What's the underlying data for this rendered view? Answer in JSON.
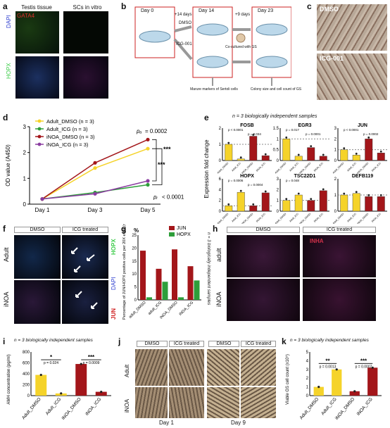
{
  "colors": {
    "adult_yellow": "#f5d32a",
    "inoa_red": "#a3161a",
    "line_green": "#2e9e3a",
    "line_purple": "#8a3ca0",
    "gata4_red": "#e0302a",
    "hopx_green": "#3dcc4a",
    "dapi_blue": "#3040d0",
    "inha_red": "#d0304a",
    "micro_brown": "#9a8670",
    "scale_yellow": "#f0d000"
  },
  "panels": {
    "a": "a",
    "b": "b",
    "c": "c",
    "d": "d",
    "e": "e",
    "f": "f",
    "g": "g",
    "h": "h",
    "i": "i",
    "j": "j",
    "k": "k"
  },
  "a": {
    "col1": "Testis tissue",
    "col2": "SCs in vitro",
    "gata4": "GATA4",
    "dapi": "DAPI",
    "hopx": "HOPX"
  },
  "b": {
    "day0": "Day 0",
    "day14": "Day 14",
    "day23": "Day 23",
    "plus14": "+14 days",
    "plus9": "+9 days",
    "dmso": "DMSO",
    "icg": "ICG-001",
    "cocult": "Co-cultured with GS",
    "mature": "Marure markers of Sertoli cells",
    "colony": "Colony size and cell count of GS"
  },
  "c": {
    "dmso": "DMSO",
    "icg": "ICG-001"
  },
  "d": {
    "ylabel": "OD value (A450)",
    "legend": [
      "Adult_DMSO (n = 3)",
      "Adult_ICG (n = 3)",
      "iNOA_DMSO (n = 3)",
      "iNOA_ICG (n = 3)"
    ],
    "pa": "= 0.0002",
    "pi": "< 0.0001",
    "stars": "***"
  },
  "e": {
    "note": "n = 3 biologically independent samples",
    "ylabel": "Expression fold change",
    "groups": [
      "Adult_DMSO",
      "Adult_ICG",
      "iNOA_DMSO",
      "iNOA_ICG"
    ]
  },
  "f": {
    "dmso": "DMSO",
    "icg": "ICG treated",
    "adult": "Adult",
    "inoa": "iNOA",
    "hopx": "HOPX",
    "dapi": "DAPI",
    "jun": "JUN"
  },
  "g": {
    "pct": "%",
    "ylabel": "Percentage of JUN/HOPX positive cells per 20X eight (n = 3)",
    "note": "n = 3 biologically independent samples",
    "legend": [
      "JUN",
      "HOPX"
    ],
    "cats": [
      "adult_DMSO",
      "adult_ICG",
      "iNOA_DMSO",
      "iNOA_ICG"
    ]
  },
  "h": {
    "dmso": "DMSO",
    "icg": "ICG treated",
    "inha": "INHA",
    "adult": "adult",
    "inoa": "iNOA"
  },
  "i": {
    "note": "n = 3 biologically independent samples",
    "ylabel": "AMH concentration (pg/ml)",
    "p1": "p = 0.024",
    "p2": "p = 0.0009",
    "s1": "*",
    "s2": "***"
  },
  "j": {
    "dmso1": "DMSO",
    "icg1": "ICG treated",
    "dmso2": "DMSO",
    "icg2": "ICG treated",
    "adult": "Adult",
    "inoa": "iNOA",
    "day1": "Day 1",
    "day9": "Day 9"
  },
  "k": {
    "note": "n = 3 biologically independent samples",
    "ylabel": "Viable GS cell count (x10⁵)",
    "p1": "p = 0.0013",
    "p2": "p = 0.0007",
    "s1": "**",
    "s2": "***"
  },
  "chart_data": [
    {
      "id": "d",
      "type": "line",
      "x": [
        "Day 1",
        "Day 3",
        "Day 5"
      ],
      "ylim": [
        0,
        3
      ],
      "yticks": [
        0,
        1,
        2,
        3
      ],
      "series": [
        {
          "name": "Adult_DMSO (n = 3)",
          "values": [
            0.2,
            1.4,
            2.15
          ]
        },
        {
          "name": "Adult_ICG (n = 3)",
          "values": [
            0.2,
            0.45,
            0.75
          ]
        },
        {
          "name": "iNOA_DMSO (n = 3)",
          "values": [
            0.2,
            1.6,
            2.5
          ]
        },
        {
          "name": "iNOA_ICG (n = 3)",
          "values": [
            0.2,
            0.4,
            0.9
          ]
        }
      ]
    },
    {
      "id": "e",
      "type": "bar",
      "subplots": [
        {
          "title": "FOSB",
          "ylim": [
            0,
            2
          ],
          "yticks": [
            0,
            1,
            2
          ],
          "values": [
            1.0,
            0.1,
            1.5,
            0.3
          ],
          "pvals": [
            "p < 0.0001",
            "p = 0.034"
          ]
        },
        {
          "title": "EGR3",
          "ylim": [
            0,
            1.5
          ],
          "yticks": [
            0,
            0.5,
            1,
            1.5
          ],
          "values": [
            1.0,
            0.2,
            0.6,
            0.2
          ],
          "pvals": [
            "p = 0.017",
            "p = 0.0001"
          ]
        },
        {
          "title": "JUN",
          "ylim": [
            0,
            3
          ],
          "yticks": [
            0,
            1,
            2,
            3
          ],
          "values": [
            1.0,
            0.5,
            2.0,
            0.7
          ],
          "pvals": [
            "p < 0.0001",
            "p = 0.0002"
          ]
        },
        {
          "title": "HOPX",
          "ylim": [
            0,
            6
          ],
          "yticks": [
            0,
            2,
            4,
            6
          ],
          "values": [
            1.0,
            3.5,
            1.0,
            3.4
          ],
          "pvals": [
            "p = 0.0006",
            "p = 0.0004"
          ]
        },
        {
          "title": "TSC22D1",
          "ylim": [
            0,
            3
          ],
          "yticks": [
            0,
            1,
            2,
            3
          ],
          "values": [
            1.0,
            1.5,
            1.0,
            1.9
          ],
          "pvals": [
            "p = 0.048"
          ]
        },
        {
          "title": "DEFB119",
          "ylim": [
            0,
            2
          ],
          "yticks": [
            0,
            1,
            2
          ],
          "values": [
            1.0,
            1.1,
            0.9,
            0.9
          ],
          "pvals": []
        }
      ]
    },
    {
      "id": "g",
      "type": "bar",
      "categories": [
        "adult_DMSO",
        "adult_ICG",
        "iNOA_DMSO",
        "iNOA_ICG"
      ],
      "ylim": [
        0,
        25
      ],
      "yticks": [
        0,
        5,
        10,
        15,
        20,
        25
      ],
      "series": [
        {
          "name": "JUN",
          "values": [
            19,
            12,
            19.5,
            13
          ]
        },
        {
          "name": "HOPX",
          "values": [
            1,
            7,
            1,
            7.5
          ]
        }
      ]
    },
    {
      "id": "i",
      "type": "bar",
      "categories": [
        "Adult_DMSO",
        "Adult_ICG",
        "iNOA_DMSO",
        "iNOA_ICG"
      ],
      "ylim": [
        0,
        800
      ],
      "yticks": [
        0,
        200,
        400,
        600,
        800
      ],
      "values": [
        380,
        40,
        580,
        70
      ]
    },
    {
      "id": "k",
      "type": "bar",
      "categories": [
        "Adult_DMSO",
        "Adult_ICG",
        "iNOA_DMSO",
        "iNOA_ICG"
      ],
      "ylim": [
        0,
        5
      ],
      "yticks": [
        0,
        1,
        2,
        3,
        4,
        5
      ],
      "values": [
        1.0,
        3.0,
        0.5,
        3.2
      ]
    }
  ]
}
